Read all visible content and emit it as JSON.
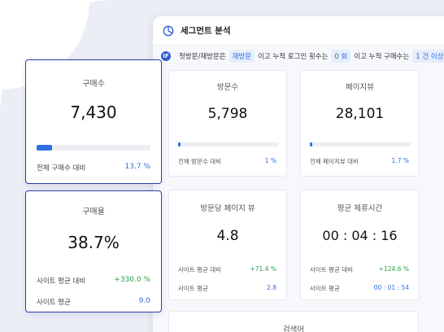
{
  "panel": {
    "title": "세그먼트 분석",
    "filter": {
      "info_icon": "IF",
      "text_1": "첫방문/재방문은",
      "chip_visit": "재방문",
      "text_2": "이고 누적 로그인 횟수는",
      "chip_login": "0 회",
      "text_3": "이고 누적 구매수는",
      "chip_purchase": "1 건 이상"
    }
  },
  "cards": {
    "visits": {
      "label": "방문수",
      "value": "5,798",
      "foot_label": "전체 방문수 대비",
      "foot_value": "1 %",
      "progress": 0.01
    },
    "pageviews": {
      "label": "페이지뷰",
      "value": "28,101",
      "foot_label": "전체 페이지뷰 대비",
      "foot_value": "1.7 %",
      "progress": 0.017
    },
    "pages_per_visit": {
      "label": "방문당 페이지 뷰",
      "value": "4.8",
      "row1_label": "사이트 평균 대비",
      "row1_value": "+71.4 %",
      "row2_label": "사이트 평균",
      "row2_value": "2.8"
    },
    "avg_duration": {
      "label": "평균 체류시간",
      "value": "00 : 04 : 16",
      "row1_label": "사이트 평균 대비",
      "row1_value": "+124.6 %",
      "row2_label": "사이트 평균",
      "row2_value": "00 : 01 : 54"
    },
    "search": {
      "label": "검색어"
    }
  },
  "float_cards": {
    "purchases": {
      "label": "구매수",
      "value": "7,430",
      "foot_label": "전체 구매수 대비",
      "foot_value": "13.7 %",
      "progress": 0.137
    },
    "purchase_rate": {
      "label": "구매율",
      "value": "38.7%",
      "row1_label": "사이트 평균 대비",
      "row1_value": "+330.0 %",
      "row2_label": "사이트 평균",
      "row2_value": "9.0"
    }
  },
  "colors": {
    "accent": "#2f6fe0",
    "positive": "#27a047",
    "card_border": "#2b3fa8"
  },
  "icons": {
    "header": "pie-chart-icon",
    "info": "info-icon"
  }
}
